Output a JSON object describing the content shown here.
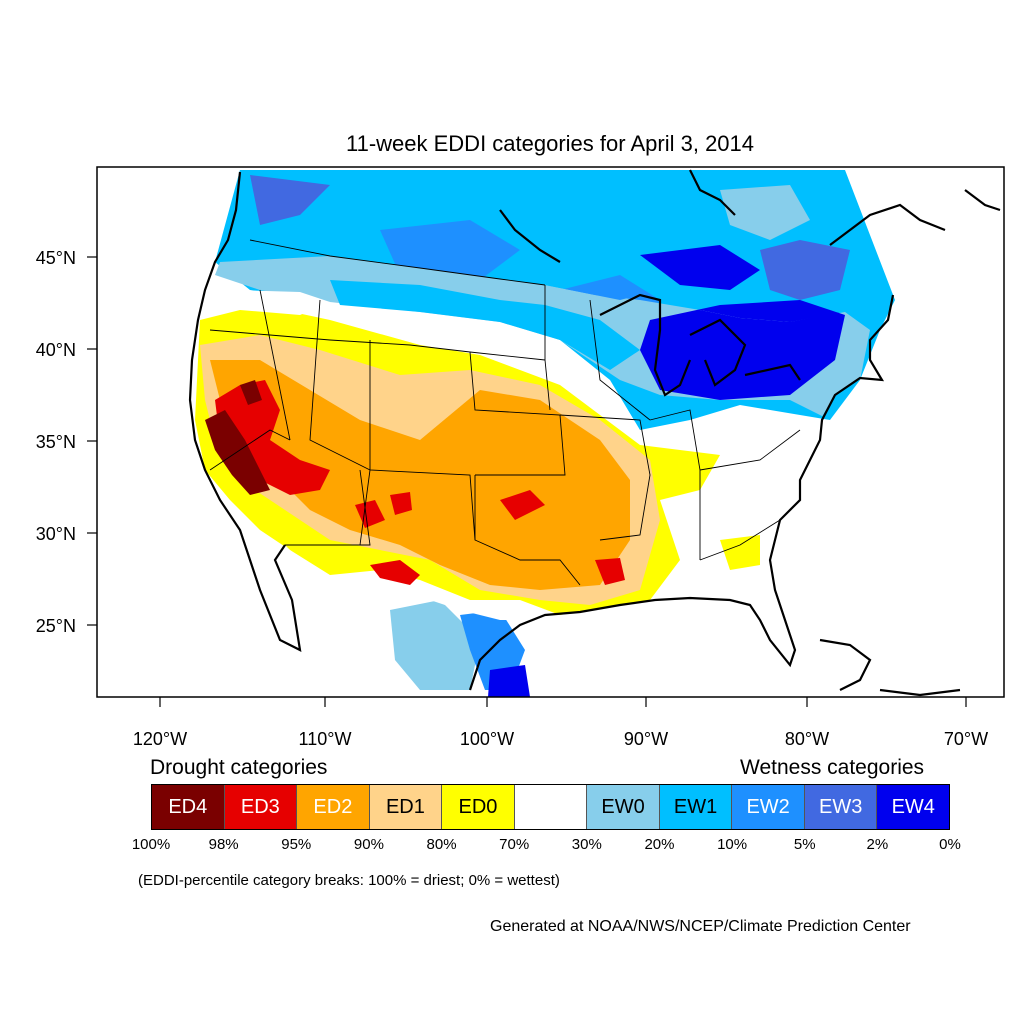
{
  "title": "11-week EDDI categories for April 3, 2014",
  "axes": {
    "lat_labels": [
      "45°N",
      "40°N",
      "35°N",
      "30°N",
      "25°N"
    ],
    "lon_labels": [
      "120°W",
      "110°W",
      "100°W",
      "90°W",
      "80°W",
      "70°W"
    ]
  },
  "legend": {
    "drought_header": "Drought categories",
    "wetness_header": "Wetness categories",
    "categories": [
      {
        "label": "ED4",
        "color": "#7a0000",
        "text_color": "#ffffff"
      },
      {
        "label": "ED3",
        "color": "#e60000",
        "text_color": "#ffffff"
      },
      {
        "label": "ED2",
        "color": "#ffa500",
        "text_color": "#ffffff"
      },
      {
        "label": "ED1",
        "color": "#ffd38a",
        "text_color": "#000000"
      },
      {
        "label": "ED0",
        "color": "#ffff00",
        "text_color": "#000000"
      },
      {
        "label": "",
        "color": "#ffffff",
        "text_color": "#000000"
      },
      {
        "label": "EW0",
        "color": "#87ceeb",
        "text_color": "#000000"
      },
      {
        "label": "EW1",
        "color": "#00bfff",
        "text_color": "#000000"
      },
      {
        "label": "EW2",
        "color": "#1e90ff",
        "text_color": "#ffffff"
      },
      {
        "label": "EW3",
        "color": "#4169e1",
        "text_color": "#ffffff"
      },
      {
        "label": "EW4",
        "color": "#0000ee",
        "text_color": "#ffffff"
      }
    ],
    "breaks": [
      "100%",
      "98%",
      "95%",
      "90%",
      "80%",
      "70%",
      "30%",
      "20%",
      "10%",
      "5%",
      "2%",
      "0%"
    ],
    "note": "(EDDI-percentile category breaks: 100% = driest; 0% = wettest)"
  },
  "credit": "Generated at NOAA/NWS/NCEP/Climate Prediction Center"
}
